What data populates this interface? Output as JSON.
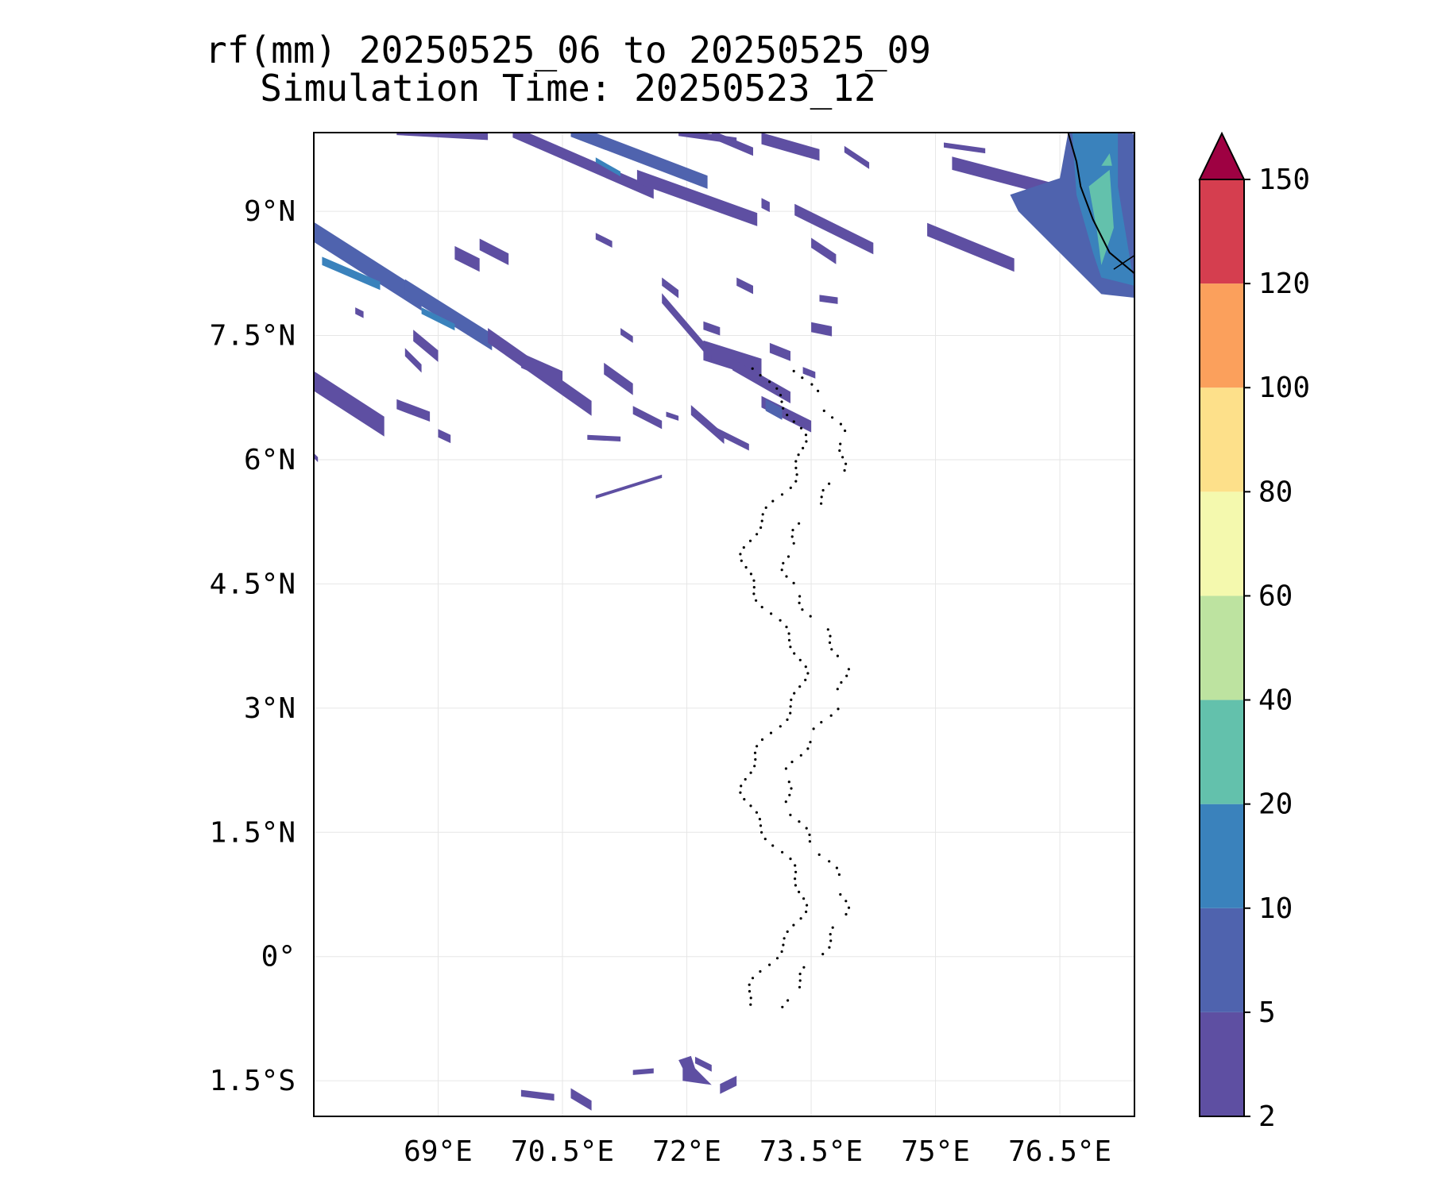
{
  "title": {
    "line1": "rf(mm) 20250525_06 to 20250525_09",
    "line2": "Simulation Time: 20250523_12"
  },
  "map": {
    "lon_range": [
      67.5,
      77.4
    ],
    "lat_range": [
      -1.93,
      9.95
    ],
    "lon_ticks": [
      "69°E",
      "70.5°E",
      "72°E",
      "73.5°E",
      "75°E",
      "76.5°E"
    ],
    "lon_tick_values": [
      69,
      70.5,
      72,
      73.5,
      75,
      76.5
    ],
    "lat_ticks": [
      "9°N",
      "7.5°N",
      "6°N",
      "4.5°N",
      "3°N",
      "1.5°N",
      "0°",
      "1.5°S"
    ],
    "lat_tick_values": [
      9,
      7.5,
      6,
      4.5,
      3,
      1.5,
      0,
      -1.5
    ],
    "gridlines": true
  },
  "colorbar": {
    "levels": [
      "2",
      "5",
      "10",
      "20",
      "40",
      "60",
      "80",
      "100",
      "120",
      "150"
    ],
    "colors": [
      "#5e4fa2",
      "#4f63ae",
      "#3a82bc",
      "#63c1ac",
      "#bde3a0",
      "#f4f9ae",
      "#fde08a",
      "#fba05c",
      "#d53e4f",
      "#9e0142"
    ],
    "extend": "max"
  },
  "chart_data": {
    "type": "heatmap",
    "title": "rf(mm) 20250525_06 to 20250525_09\nSimulation Time: 20250523_12",
    "xlabel": "",
    "ylabel": "",
    "xlim": [
      67.5,
      77.4
    ],
    "ylim": [
      -1.93,
      9.95
    ],
    "colorbar_levels": [
      2,
      5,
      10,
      20,
      40,
      60,
      80,
      100,
      120,
      150
    ],
    "rain_bands": [
      {
        "lon": [
          68.5,
          69.7
        ],
        "lat": [
          9.95,
          9.85
        ],
        "max_mm": 5
      },
      {
        "lon": [
          69.9,
          71.6
        ],
        "lat": [
          9.9,
          9.2
        ],
        "max_mm": 5
      },
      {
        "lon": [
          70.6,
          72.2
        ],
        "lat": [
          9.95,
          9.35
        ],
        "max_mm": 10
      },
      {
        "lon": [
          72.9,
          73.6
        ],
        "lat": [
          9.85,
          9.65
        ],
        "max_mm": 5
      },
      {
        "lon": [
          71.4,
          72.8
        ],
        "lat": [
          9.4,
          8.85
        ],
        "max_mm": 5
      },
      {
        "lon": [
          73.3,
          74.3
        ],
        "lat": [
          9.0,
          8.5
        ],
        "max_mm": 5
      },
      {
        "lon": [
          74.9,
          75.9
        ],
        "lat": [
          8.75,
          8.35
        ],
        "max_mm": 5
      },
      {
        "lon": [
          75.1,
          76.9
        ],
        "lat": [
          9.55,
          9.1
        ],
        "max_mm": 5
      },
      {
        "lon": [
          76.6,
          77.4
        ],
        "lat": [
          9.95,
          7.95
        ],
        "max_mm": 40
      },
      {
        "lon": [
          67.5,
          68.8
        ],
        "lat": [
          8.7,
          7.85
        ],
        "max_mm": 10
      },
      {
        "lon": [
          68.6,
          69.6
        ],
        "lat": [
          8.05,
          7.4
        ],
        "max_mm": 10
      },
      {
        "lon": [
          69.5,
          70.8
        ],
        "lat": [
          7.5,
          6.6
        ],
        "max_mm": 5
      },
      {
        "lon": [
          70.8,
          71.2
        ],
        "lat": [
          7.05,
          6.85
        ],
        "max_mm": 5
      },
      {
        "lon": [
          71.7,
          72.3
        ],
        "lat": [
          7.9,
          7.2
        ],
        "max_mm": 5
      },
      {
        "lon": [
          72.1,
          72.9
        ],
        "lat": [
          7.45,
          7.1
        ],
        "max_mm": 5
      },
      {
        "lon": [
          72.5,
          73.2
        ],
        "lat": [
          7.15,
          6.75
        ],
        "max_mm": 5
      },
      {
        "lon": [
          72.8,
          73.5
        ],
        "lat": [
          6.85,
          6.55
        ],
        "max_mm": 5
      },
      {
        "lon": [
          67.5,
          68.3
        ],
        "lat": [
          7.0,
          6.4
        ],
        "max_mm": 5
      },
      {
        "lon": [
          70.0,
          70.6
        ],
        "lat": [
          -1.6,
          -1.85
        ],
        "max_mm": 5
      },
      {
        "lon": [
          71.3,
          72.4
        ],
        "lat": [
          -1.3,
          -1.6
        ],
        "max_mm": 5
      }
    ]
  }
}
